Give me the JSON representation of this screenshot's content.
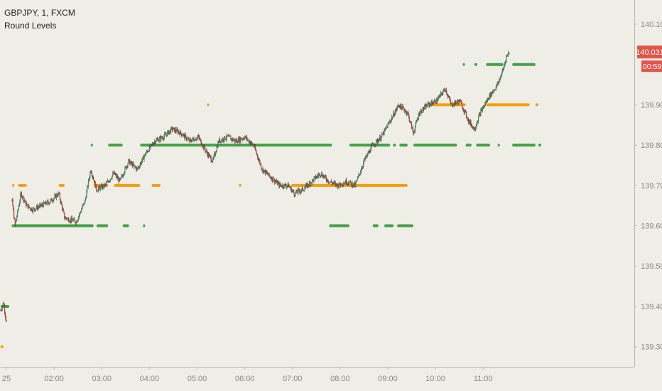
{
  "header": {
    "symbol_line": "GBPJPY, 1, FXCM",
    "indicator": "Round Levels"
  },
  "price_badge": {
    "value": "140.031",
    "countdown": "00:59",
    "color": "#e0554a"
  },
  "colors": {
    "background": "#eeede6",
    "up_candle": "#3f8f5a",
    "down_candle": "#b23a30",
    "level_green": "#43a047",
    "level_orange": "#f59d0b",
    "axis_text": "#8a8a85"
  },
  "chart_data": {
    "type": "candlestick",
    "title": "",
    "xlabel": "",
    "ylabel": "",
    "y_ticks": [
      "140.100",
      "139.900",
      "139.800",
      "139.700",
      "139.600",
      "139.500",
      "139.400",
      "139.300"
    ],
    "x_ticks": [
      "25",
      "02:00",
      "03:00",
      "04:00",
      "05:00",
      "06:00",
      "07:00",
      "08:00",
      "09:00",
      "10:00",
      "11:00"
    ],
    "ylim": [
      139.25,
      140.16
    ],
    "xlim_minutes": [
      -11,
      1080
    ],
    "last_price": 140.031,
    "price_path": [
      [
        -10,
        139.39
      ],
      [
        -5,
        139.41
      ],
      [
        0,
        139.36
      ],
      [
        10,
        139.66
      ],
      [
        15,
        139.6
      ],
      [
        25,
        139.68
      ],
      [
        35,
        139.65
      ],
      [
        45,
        139.64
      ],
      [
        60,
        139.65
      ],
      [
        75,
        139.66
      ],
      [
        90,
        139.68
      ],
      [
        100,
        139.62
      ],
      [
        120,
        139.61
      ],
      [
        135,
        139.66
      ],
      [
        145,
        139.74
      ],
      [
        155,
        139.69
      ],
      [
        170,
        139.7
      ],
      [
        185,
        139.73
      ],
      [
        195,
        139.71
      ],
      [
        210,
        139.76
      ],
      [
        225,
        139.74
      ],
      [
        240,
        139.78
      ],
      [
        255,
        139.81
      ],
      [
        270,
        139.82
      ],
      [
        285,
        139.84
      ],
      [
        300,
        139.83
      ],
      [
        315,
        139.81
      ],
      [
        330,
        139.82
      ],
      [
        345,
        139.78
      ],
      [
        355,
        139.76
      ],
      [
        365,
        139.81
      ],
      [
        380,
        139.82
      ],
      [
        395,
        139.81
      ],
      [
        410,
        139.82
      ],
      [
        425,
        139.8
      ],
      [
        440,
        139.74
      ],
      [
        455,
        139.72
      ],
      [
        470,
        139.7
      ],
      [
        485,
        139.7
      ],
      [
        495,
        139.68
      ],
      [
        510,
        139.69
      ],
      [
        525,
        139.71
      ],
      [
        540,
        139.73
      ],
      [
        555,
        139.71
      ],
      [
        570,
        139.7
      ],
      [
        585,
        139.71
      ],
      [
        600,
        139.7
      ],
      [
        615,
        139.76
      ],
      [
        630,
        139.8
      ],
      [
        645,
        139.82
      ],
      [
        660,
        139.86
      ],
      [
        675,
        139.9
      ],
      [
        690,
        139.88
      ],
      [
        700,
        139.83
      ],
      [
        710,
        139.88
      ],
      [
        725,
        139.9
      ],
      [
        740,
        139.91
      ],
      [
        755,
        139.94
      ],
      [
        765,
        139.9
      ],
      [
        780,
        139.91
      ],
      [
        795,
        139.86
      ],
      [
        805,
        139.84
      ],
      [
        815,
        139.88
      ],
      [
        830,
        139.92
      ],
      [
        845,
        139.95
      ],
      [
        855,
        139.99
      ],
      [
        860,
        140.02
      ],
      [
        865,
        140.031
      ]
    ],
    "green_levels": [
      {
        "y": 139.6,
        "segments": [
          [
            9,
            150
          ],
          [
            155,
            175
          ],
          [
            200,
            211
          ],
          [
            235,
            236
          ],
          [
            555,
            590
          ],
          [
            630,
            640
          ],
          [
            650,
            666
          ],
          [
            672,
            700
          ]
        ]
      },
      {
        "y": 139.8,
        "segments": [
          [
            145,
            146
          ],
          [
            175,
            200
          ],
          [
            230,
            560
          ],
          [
            590,
            660
          ],
          [
            665,
            670
          ],
          [
            676,
            690
          ],
          [
            700,
            775
          ],
          [
            790,
            800
          ],
          [
            808,
            832
          ],
          [
            845,
            848
          ],
          [
            870,
            910
          ],
          [
            915,
            920
          ]
        ]
      },
      {
        "y": 140.0,
        "segments": [
          [
            785,
            786
          ],
          [
            805,
            810
          ],
          [
            825,
            855
          ],
          [
            870,
            910
          ]
        ]
      },
      {
        "y": 139.4,
        "segments": [
          [
            -10,
            5
          ]
        ]
      }
    ],
    "orange_levels": [
      {
        "y": 139.7,
        "segments": [
          [
            10,
            12
          ],
          [
            20,
            35
          ],
          [
            90,
            100
          ],
          [
            150,
            175
          ],
          [
            185,
            230
          ],
          [
            250,
            265
          ],
          [
            400,
            401
          ],
          [
            490,
            690
          ]
        ]
      },
      {
        "y": 139.9,
        "segments": [
          [
            345,
            346
          ],
          [
            730,
            790
          ],
          [
            825,
            900
          ],
          [
            910,
            915
          ]
        ]
      },
      {
        "y": 139.3,
        "segments": [
          [
            -10,
            -5
          ]
        ]
      }
    ]
  }
}
